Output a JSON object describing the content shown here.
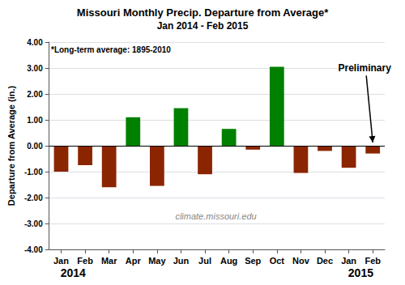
{
  "chart_data": {
    "type": "bar",
    "title": "Missouri Monthly Precip. Departure from Average*",
    "subtitle": "Jan 2014 - Feb 2015",
    "ylabel": "Departure from Average (in.)",
    "note": "*Long-term average: 1895-2010",
    "watermark": "climate.missouri.edu",
    "annotation": "Preliminary",
    "categories": [
      "Jan",
      "Feb",
      "Mar",
      "Apr",
      "May",
      "Jun",
      "Jul",
      "Aug",
      "Sep",
      "Oct",
      "Nov",
      "Dec",
      "Jan",
      "Feb"
    ],
    "year_labels": [
      "2014",
      null,
      null,
      null,
      null,
      null,
      null,
      null,
      null,
      null,
      null,
      null,
      "2015",
      null
    ],
    "values": [
      -1.0,
      -0.75,
      -1.6,
      1.1,
      -1.55,
      1.45,
      -1.1,
      0.65,
      -0.15,
      3.05,
      -1.05,
      -0.2,
      -0.85,
      -0.3
    ],
    "colors": [
      "#8B2500",
      "#8B2500",
      "#8B2500",
      "#008000",
      "#8B2500",
      "#008000",
      "#8B2500",
      "#008000",
      "#8B2500",
      "#008000",
      "#8B2500",
      "#8B2500",
      "#8B2500",
      "#8B2500"
    ],
    "ylim": [
      -4.0,
      4.0
    ],
    "yticks": [
      {
        "value": -4.0,
        "label": "-4.00"
      },
      {
        "value": -3.0,
        "label": "-3.00"
      },
      {
        "value": -2.0,
        "label": "-2.00"
      },
      {
        "value": -1.0,
        "label": "-1.00"
      },
      {
        "value": 0.0,
        "label": "0.00"
      },
      {
        "value": 1.0,
        "label": "1.00"
      },
      {
        "value": 2.0,
        "label": "2.00"
      },
      {
        "value": 3.0,
        "label": "3.00"
      },
      {
        "value": 4.0,
        "label": "4.00"
      }
    ],
    "grid": true
  }
}
